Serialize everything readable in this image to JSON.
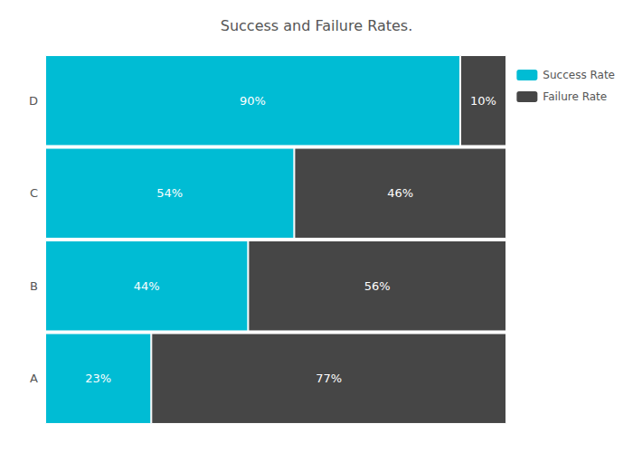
{
  "chart_data": {
    "type": "bar",
    "title": "Success and Failure Rates.",
    "orientation": "horizontal",
    "stacked": true,
    "categories": [
      "A",
      "B",
      "C",
      "D"
    ],
    "series": [
      {
        "name": "Success Rate",
        "color": "#00bcd4",
        "values": [
          23,
          44,
          54,
          90
        ],
        "value_labels": [
          "23%",
          "44%",
          "54%",
          "90%"
        ]
      },
      {
        "name": "Failure Rate",
        "color": "#464646",
        "values": [
          77,
          56,
          46,
          10
        ],
        "value_labels": [
          "77%",
          "56%",
          "46%",
          "10%"
        ]
      }
    ],
    "xlim": [
      0,
      100
    ],
    "grid": false,
    "legend": "right",
    "data_labels": true,
    "tick_labels": "y"
  }
}
